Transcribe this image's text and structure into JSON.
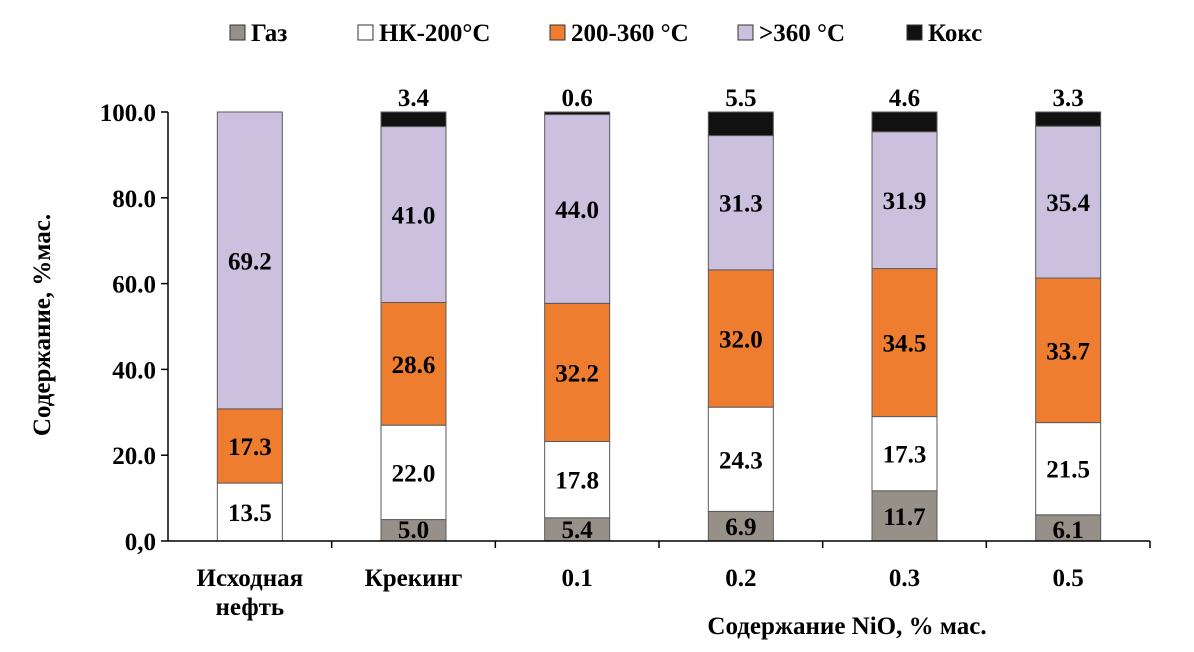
{
  "chart_data": {
    "type": "bar",
    "stacked": true,
    "title": "",
    "ylabel": "Содержание, %мас.",
    "xlabel": "Содержание NiO, % мас.",
    "ylim": [
      0,
      100
    ],
    "yticks": [
      "0,0",
      "20.0",
      "40.0",
      "60.0",
      "80.0",
      "100.0"
    ],
    "categories": [
      "Исходная нефть",
      "Крекинг",
      "0.1",
      "0.2",
      "0.3",
      "0.5"
    ],
    "category_lines": [
      [
        "Исходная",
        "нефть"
      ],
      [
        "Крекинг"
      ],
      [
        "0.1"
      ],
      [
        "0.2"
      ],
      [
        "0.3"
      ],
      [
        "0.5"
      ]
    ],
    "legend_position": "top",
    "grid": false,
    "series": [
      {
        "name": "Газ",
        "color": "#969089",
        "values": [
          0,
          5.0,
          5.4,
          6.9,
          11.7,
          6.1
        ],
        "labels": [
          "",
          "5.0",
          "5.4",
          "6.9",
          "11.7",
          "6.1"
        ]
      },
      {
        "name": "НК-200°С",
        "color": "#ffffff",
        "values": [
          13.5,
          22.0,
          17.8,
          24.3,
          17.3,
          21.5
        ],
        "labels": [
          "13.5",
          "22.0",
          "17.8",
          "24.3",
          "17.3",
          "21.5"
        ]
      },
      {
        "name": "200-360 °С",
        "color": "#ee7d30",
        "values": [
          17.3,
          28.6,
          32.2,
          32.0,
          34.5,
          33.7
        ],
        "labels": [
          "17.3",
          "28.6",
          "32.2",
          "32.0",
          "34.5",
          "33.7"
        ]
      },
      {
        "name": ">360 °С",
        "color": "#cbc1de",
        "values": [
          69.2,
          41.0,
          44.0,
          31.3,
          31.9,
          35.4
        ],
        "labels": [
          "69.2",
          "41.0",
          "44.0",
          "31.3",
          "31.9",
          "35.4"
        ]
      },
      {
        "name": "Кокс",
        "color": "#111111",
        "values": [
          0,
          3.4,
          0.6,
          5.5,
          4.6,
          3.3
        ],
        "labels": [
          "",
          "3.4",
          "0.6",
          "5.5",
          "4.6",
          "3.3"
        ]
      }
    ]
  }
}
